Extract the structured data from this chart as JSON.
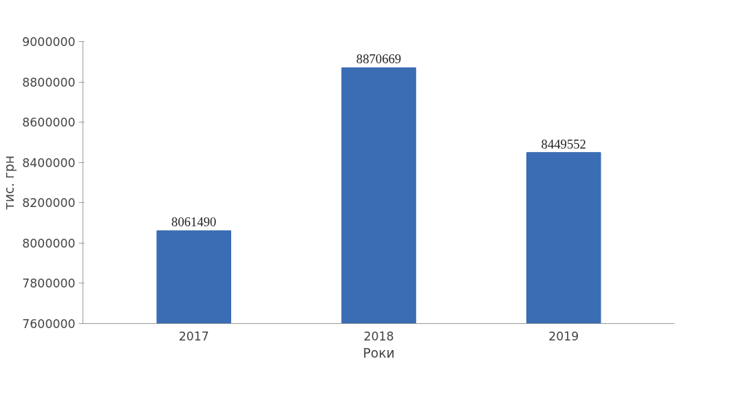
{
  "chart_data": {
    "type": "bar",
    "xlabel": "Роки",
    "ylabel": "тис. грн",
    "categories": [
      "2017",
      "2018",
      "2019"
    ],
    "values": [
      8061490,
      8870669,
      8449552
    ],
    "color": "#3a6db3",
    "ylim": [
      7600000,
      9000000
    ],
    "yticks": [
      7600000,
      7800000,
      8000000,
      8200000,
      8400000,
      8600000,
      8800000,
      9000000
    ],
    "data_labels": true,
    "grid": false
  }
}
